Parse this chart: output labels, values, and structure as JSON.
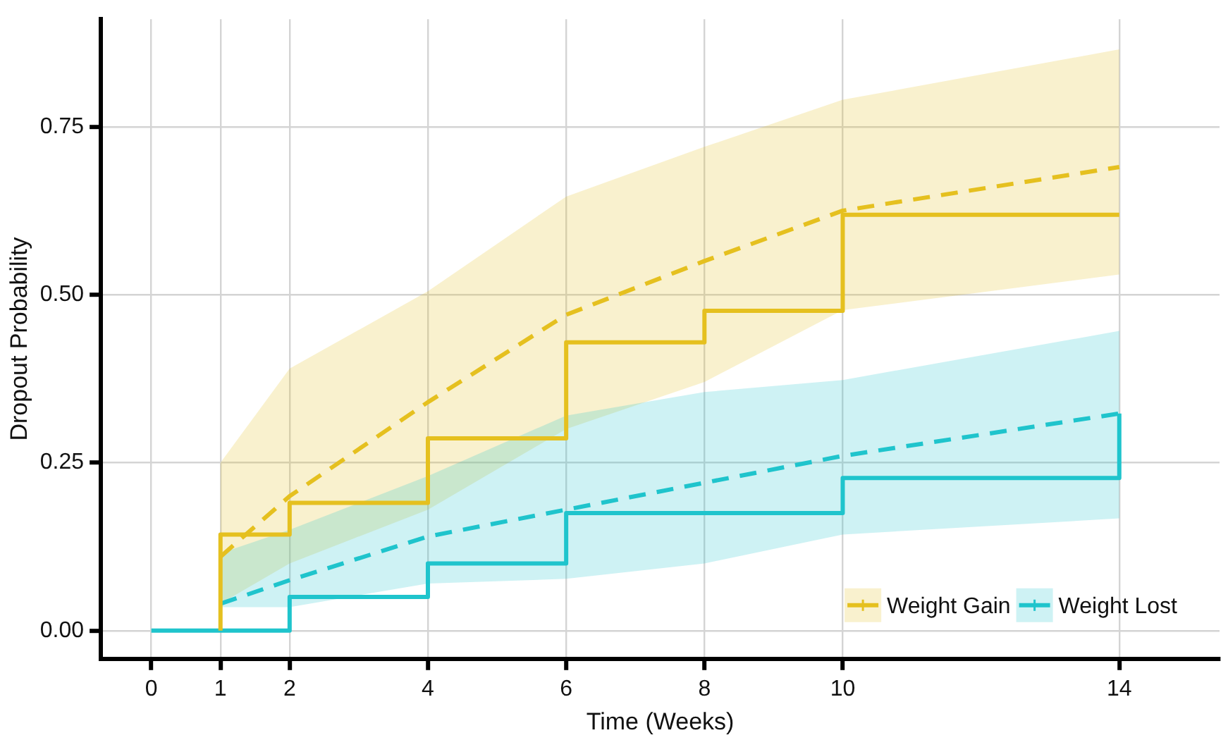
{
  "chart_data": {
    "type": "step",
    "xlabel": "Time (Weeks)",
    "ylabel": "Dropout Probability",
    "xlim": [
      -0.73,
      15.45
    ],
    "xticks": [
      0,
      1,
      2,
      4,
      6,
      8,
      10,
      14
    ],
    "ylim": [
      -0.042,
      0.91
    ],
    "yticks": [
      {
        "value": 0,
        "label": "0.00"
      },
      {
        "value": 0.25,
        "label": "0.25"
      },
      {
        "value": 0.5,
        "label": "0.50"
      },
      {
        "value": 0.75,
        "label": "0.75"
      }
    ],
    "grid": true,
    "legend": "bottom right",
    "series": [
      {
        "name": "Weight Gain",
        "type": "step",
        "color": "#e5c01f",
        "x": [
          1,
          1,
          2,
          4,
          6,
          8,
          10,
          14
        ],
        "values": [
          0,
          0.143,
          0.19,
          0.286,
          0.429,
          0.476,
          0.619,
          0.619
        ]
      },
      {
        "type": "line",
        "line_style": "dashed",
        "color": "#e5c01f",
        "x": [
          1,
          2,
          4,
          6,
          8,
          10,
          14
        ],
        "values": [
          0.11,
          0.2,
          0.34,
          0.47,
          0.55,
          0.625,
          0.69
        ],
        "lower": [
          0.04,
          0.1,
          0.18,
          0.3,
          0.37,
          0.477,
          0.53
        ],
        "upper": [
          0.25,
          0.39,
          0.505,
          0.646,
          0.72,
          0.79,
          0.865
        ]
      },
      {
        "name": "Weight Lost",
        "type": "step",
        "color": "#1fc4cc",
        "x": [
          0,
          2,
          4,
          6,
          10,
          14,
          14
        ],
        "values": [
          0,
          0.05,
          0.1,
          0.175,
          0.227,
          0.227,
          0.323
        ]
      },
      {
        "type": "line",
        "line_style": "dashed",
        "color": "#1fc4cc",
        "x": [
          1,
          2,
          4,
          6,
          8,
          10,
          14
        ],
        "values": [
          0.04,
          0.075,
          0.14,
          0.18,
          0.22,
          0.26,
          0.323
        ],
        "lower": [
          0.035,
          0.035,
          0.07,
          0.077,
          0.1,
          0.143,
          0.167
        ],
        "upper": [
          0.115,
          0.15,
          0.23,
          0.32,
          0.355,
          0.373,
          0.446
        ]
      }
    ]
  }
}
